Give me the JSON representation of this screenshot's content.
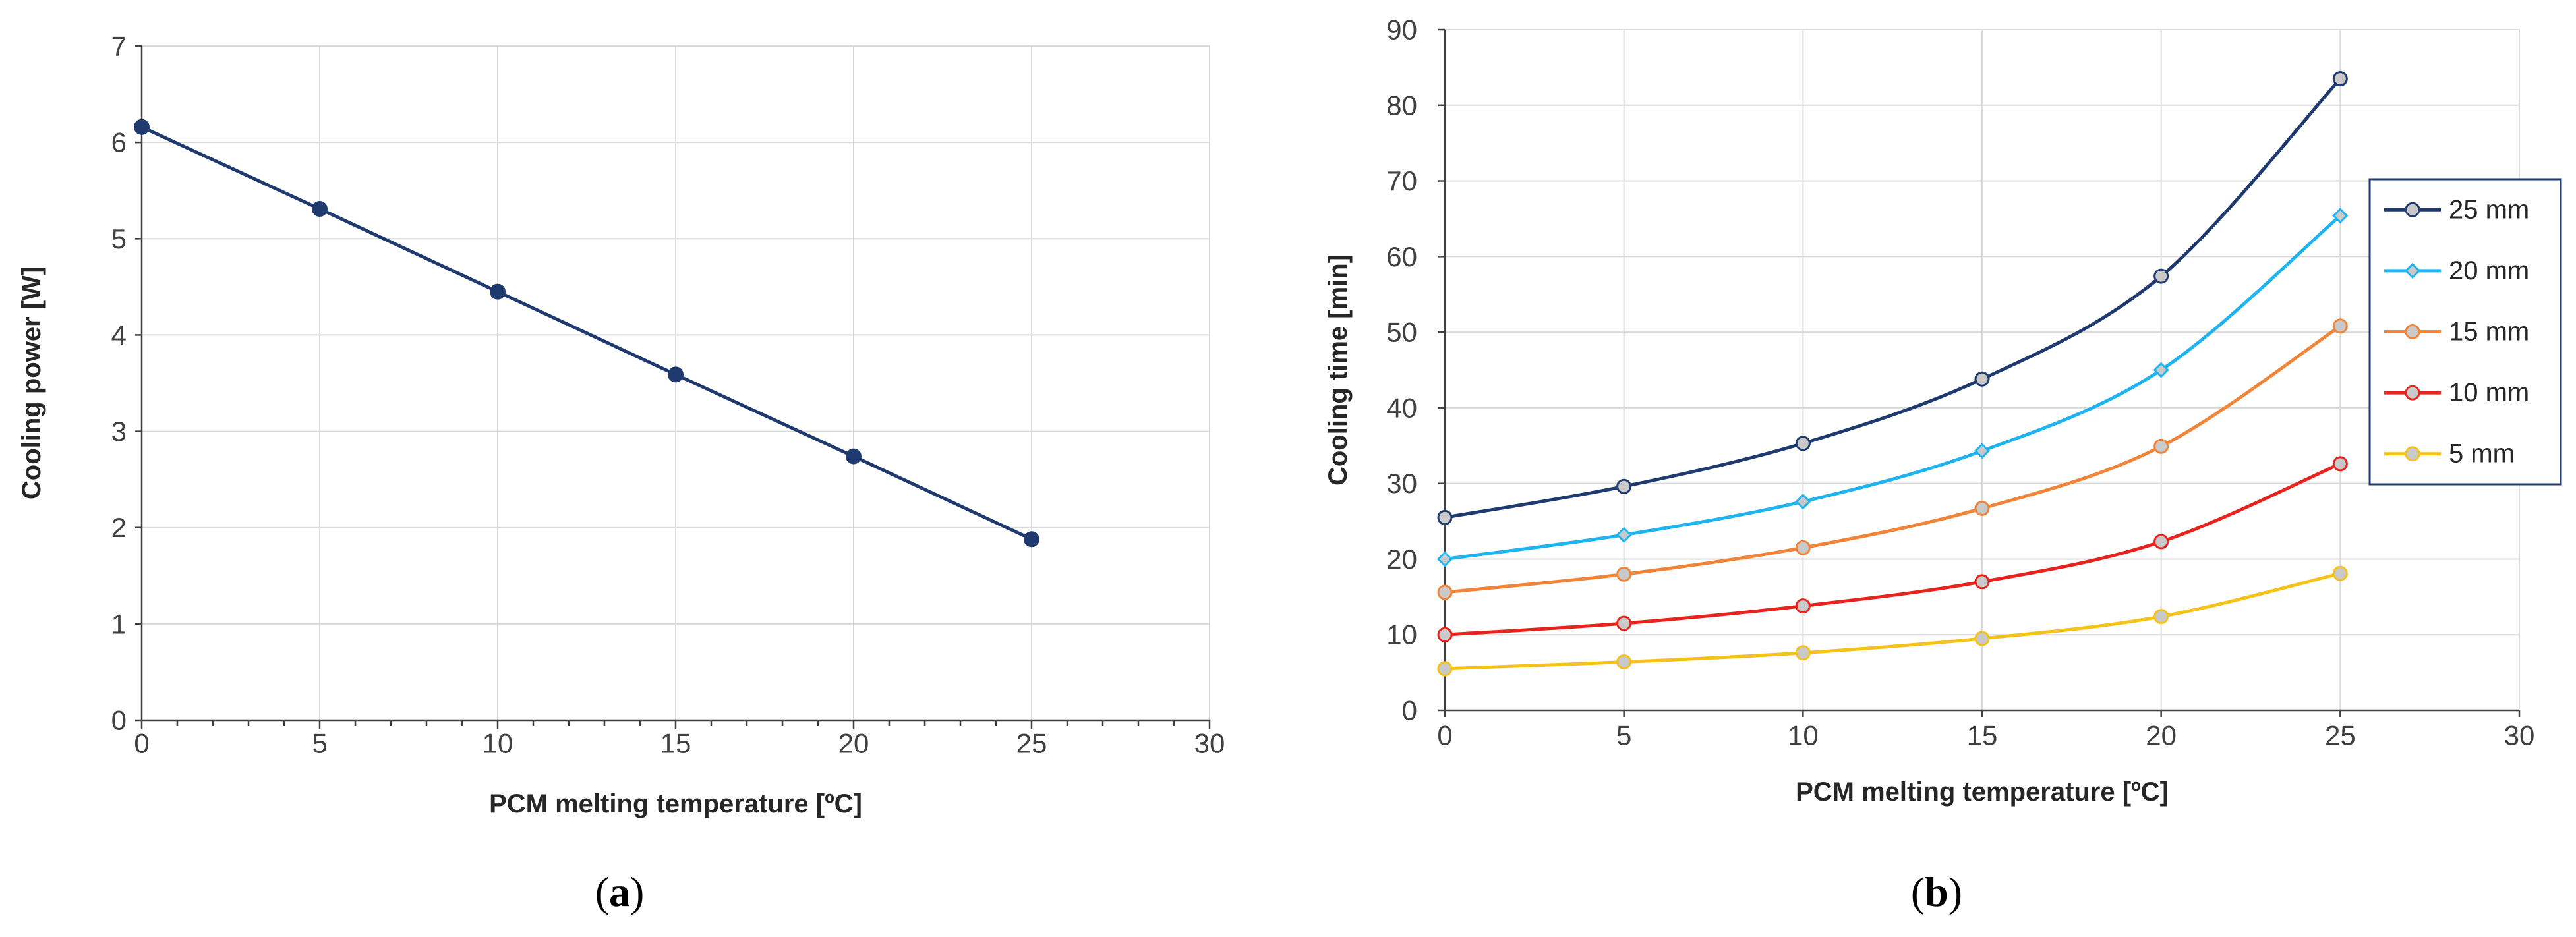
{
  "chart_data": [
    {
      "type": "line",
      "panel_label": {
        "open": "(",
        "letter": "a",
        "close": ")"
      },
      "title": "",
      "xlabel": "PCM melting temperature [ºC]",
      "ylabel": "Cooling power [W]",
      "xlim": [
        0,
        30
      ],
      "ylim": [
        0,
        7
      ],
      "xticks": [
        "0",
        "5",
        "10",
        "15",
        "20",
        "25",
        "30"
      ],
      "yticks": [
        "0",
        "1",
        "2",
        "3",
        "4",
        "5",
        "6",
        "7"
      ],
      "grid": true,
      "series": [
        {
          "name": "Cooling power",
          "color": "#1f3a6e",
          "marker": "filled-circle",
          "x": [
            0,
            5,
            10,
            15,
            20,
            25
          ],
          "values": [
            6.16,
            5.31,
            4.45,
            3.59,
            2.74,
            1.88
          ]
        }
      ]
    },
    {
      "type": "line",
      "panel_label": {
        "open": "(",
        "letter": "b",
        "close": ")"
      },
      "title": "",
      "xlabel": "PCM melting temperature [ºC]",
      "ylabel": "Cooling time [min]",
      "xlim": [
        0,
        30
      ],
      "ylim": [
        0,
        90
      ],
      "xticks": [
        "0",
        "5",
        "10",
        "15",
        "20",
        "25",
        "30"
      ],
      "yticks": [
        "0",
        "10",
        "20",
        "30",
        "40",
        "50",
        "60",
        "70",
        "80",
        "90"
      ],
      "grid": true,
      "legend_position": "right",
      "series": [
        {
          "name": "25 mm",
          "color": "#1f3a6e",
          "marker": "circle",
          "x": [
            0,
            5,
            10,
            15,
            20,
            25
          ],
          "values": [
            25.5,
            29.6,
            35.3,
            43.8,
            57.4,
            83.5
          ]
        },
        {
          "name": "20 mm",
          "color": "#1fb4f0",
          "marker": "diamond",
          "x": [
            0,
            5,
            10,
            15,
            20,
            25
          ],
          "values": [
            20.0,
            23.2,
            27.6,
            34.3,
            45.0,
            65.4
          ]
        },
        {
          "name": "15 mm",
          "color": "#f0853a",
          "marker": "circle",
          "x": [
            0,
            5,
            10,
            15,
            20,
            25
          ],
          "values": [
            15.6,
            18.0,
            21.5,
            26.7,
            34.9,
            50.8
          ]
        },
        {
          "name": "10 mm",
          "color": "#e8231e",
          "marker": "circle",
          "x": [
            0,
            5,
            10,
            15,
            20,
            25
          ],
          "values": [
            10.0,
            11.5,
            13.8,
            17.0,
            22.3,
            32.6
          ]
        },
        {
          "name": " 5 mm",
          "color": "#f5c21a",
          "marker": "circle",
          "x": [
            0,
            5,
            10,
            15,
            20,
            25
          ],
          "values": [
            5.5,
            6.4,
            7.6,
            9.5,
            12.4,
            18.1
          ]
        }
      ]
    }
  ]
}
